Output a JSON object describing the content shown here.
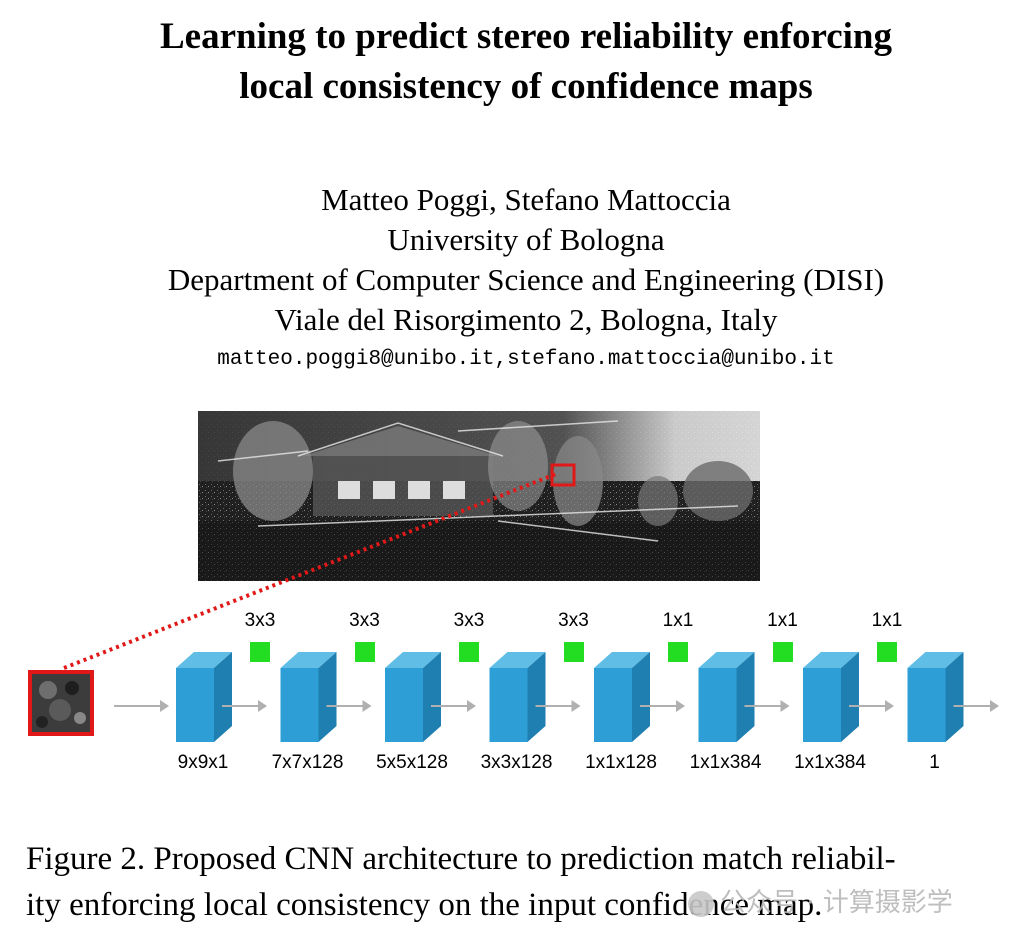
{
  "paper": {
    "title_line1": "Learning to predict stereo reliability enforcing",
    "title_line2": "local consistency of confidence maps",
    "authors": "Matteo Poggi, Stefano Mattoccia",
    "university": "University of Bologna",
    "department": "Department of Computer Science and Engineering (DISI)",
    "address": "Viale del Risorgimento 2, Bologna, Italy",
    "email": "matteo.poggi8@unibo.it,stefano.mattoccia@unibo.it"
  },
  "figure": {
    "kernels": [
      "3x3",
      "3x3",
      "3x3",
      "3x3",
      "1x1",
      "1x1",
      "1x1"
    ],
    "layers": [
      "9x9x1",
      "7x7x128",
      "5x5x128",
      "3x3x128",
      "1x1x128",
      "1x1x384",
      "1x1x384",
      "1"
    ],
    "colors": {
      "layer": "#2e9fd6",
      "kernel": "#22dd22",
      "highlight": "#e01818",
      "arrow": "#b0b0b0"
    },
    "caption_line1": "Figure 2. Proposed CNN architecture to prediction match reliabil-",
    "caption_line2": "ity enforcing local consistency on the input confidence map."
  },
  "watermark": {
    "text": "公众号 · 计算摄影学"
  }
}
